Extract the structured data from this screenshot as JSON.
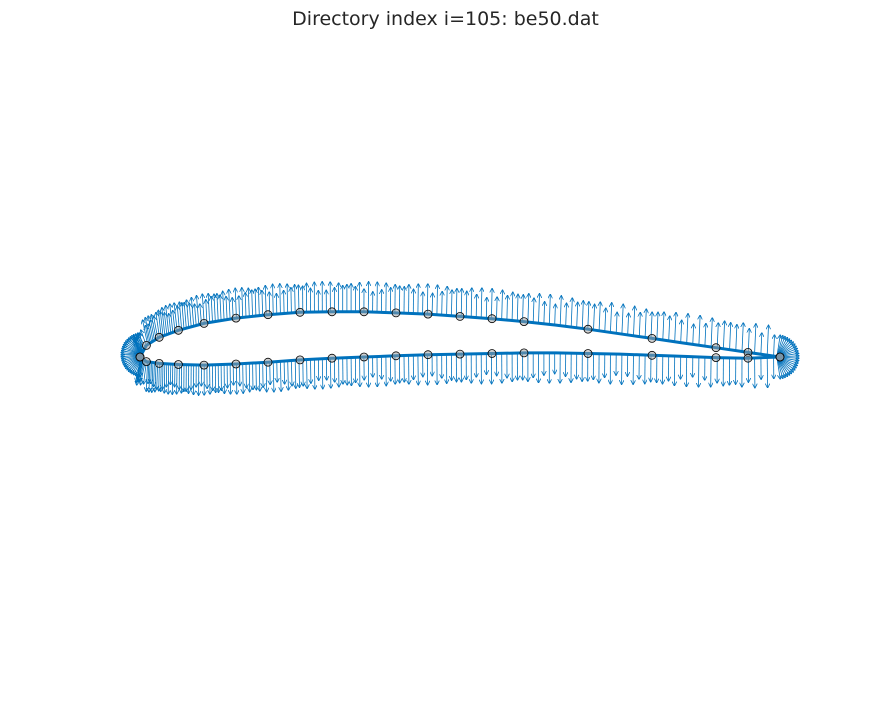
{
  "title": "Directory index i=105: be50.dat",
  "colors": {
    "airfoil": "#0072bd",
    "arrows": "#0072bd",
    "markers": "#000000",
    "marker_fill": "#a0a0a0",
    "title": "#262626"
  },
  "chart_data": {
    "type": "diagram",
    "description_source": "airfoil surface with outward normal vectors",
    "axes_visible": false,
    "grid": false,
    "upper_surface": [
      [
        0.0,
        0.0
      ],
      [
        0.01,
        0.02
      ],
      [
        0.03,
        0.034
      ],
      [
        0.06,
        0.046
      ],
      [
        0.1,
        0.058
      ],
      [
        0.15,
        0.067
      ],
      [
        0.2,
        0.073
      ],
      [
        0.25,
        0.077
      ],
      [
        0.3,
        0.078
      ],
      [
        0.35,
        0.078
      ],
      [
        0.4,
        0.076
      ],
      [
        0.45,
        0.074
      ],
      [
        0.5,
        0.07
      ],
      [
        0.55,
        0.066
      ],
      [
        0.6,
        0.061
      ],
      [
        0.65,
        0.055
      ],
      [
        0.7,
        0.048
      ],
      [
        0.75,
        0.04
      ],
      [
        0.8,
        0.032
      ],
      [
        0.85,
        0.024
      ],
      [
        0.9,
        0.016
      ],
      [
        0.95,
        0.008
      ],
      [
        1.0,
        0.0
      ]
    ],
    "lower_surface": [
      [
        0.0,
        0.0
      ],
      [
        0.01,
        -0.008
      ],
      [
        0.03,
        -0.011
      ],
      [
        0.06,
        -0.013
      ],
      [
        0.1,
        -0.014
      ],
      [
        0.15,
        -0.012
      ],
      [
        0.2,
        -0.009
      ],
      [
        0.25,
        -0.005
      ],
      [
        0.3,
        -0.002
      ],
      [
        0.35,
        0.0
      ],
      [
        0.4,
        0.002
      ],
      [
        0.45,
        0.004
      ],
      [
        0.5,
        0.005
      ],
      [
        0.55,
        0.006
      ],
      [
        0.6,
        0.007
      ],
      [
        0.65,
        0.007
      ],
      [
        0.7,
        0.006
      ],
      [
        0.75,
        0.005
      ],
      [
        0.8,
        0.003
      ],
      [
        0.85,
        0.001
      ],
      [
        0.9,
        -0.001
      ],
      [
        0.95,
        -0.002
      ],
      [
        1.0,
        0.0
      ]
    ],
    "marker_x_upper": [
      0.0,
      0.01,
      0.03,
      0.06,
      0.1,
      0.15,
      0.2,
      0.25,
      0.3,
      0.35,
      0.4,
      0.45,
      0.5,
      0.55,
      0.6,
      0.7,
      0.8,
      0.9,
      0.95,
      1.0
    ],
    "marker_x_lower": [
      0.0,
      0.01,
      0.03,
      0.06,
      0.1,
      0.15,
      0.2,
      0.25,
      0.3,
      0.35,
      0.4,
      0.45,
      0.5,
      0.55,
      0.6,
      0.7,
      0.8,
      0.9,
      0.95,
      1.0
    ]
  }
}
